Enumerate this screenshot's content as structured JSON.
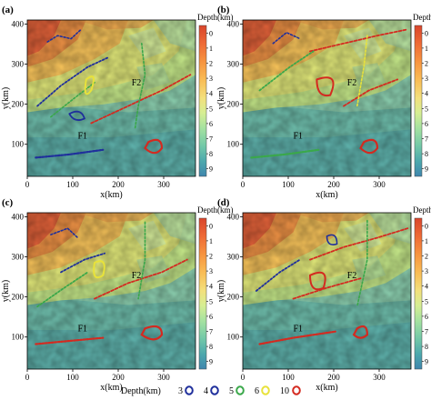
{
  "axes": {
    "xlabel": "x(km)",
    "ylabel": "y(km)",
    "xticks": [
      0,
      100,
      200,
      300
    ],
    "yticks": [
      100,
      200,
      300,
      400
    ],
    "xlim": [
      0,
      370
    ],
    "ylim": [
      20,
      410
    ]
  },
  "colorbar": {
    "title": "Depth(km)",
    "ticks": [
      "0",
      "1",
      "2",
      "3",
      "4",
      "5",
      "6",
      "7",
      "8",
      "9"
    ],
    "stops": [
      "#d9452c",
      "#ee6a36",
      "#f7943f",
      "#f9bc55",
      "#f3e07c",
      "#d6ee93",
      "#a5e2a0",
      "#72c8a8",
      "#4da8ad",
      "#3f86ad"
    ]
  },
  "fault_labels": [
    "F1",
    "F2"
  ],
  "panels": [
    {
      "label": "(a)"
    },
    {
      "label": "(b)"
    },
    {
      "label": "(c)"
    },
    {
      "label": "(d)"
    }
  ],
  "legend": {
    "title": "Depth(km)",
    "items": [
      {
        "value": "3",
        "color": "#1f2f9c"
      },
      {
        "value": "4",
        "color": "#1f2f9c"
      },
      {
        "value": "5",
        "color": "#3aa84a"
      },
      {
        "value": "6",
        "color": "#e8e23a"
      },
      {
        "value": "10",
        "color": "#d42a20"
      }
    ]
  }
}
